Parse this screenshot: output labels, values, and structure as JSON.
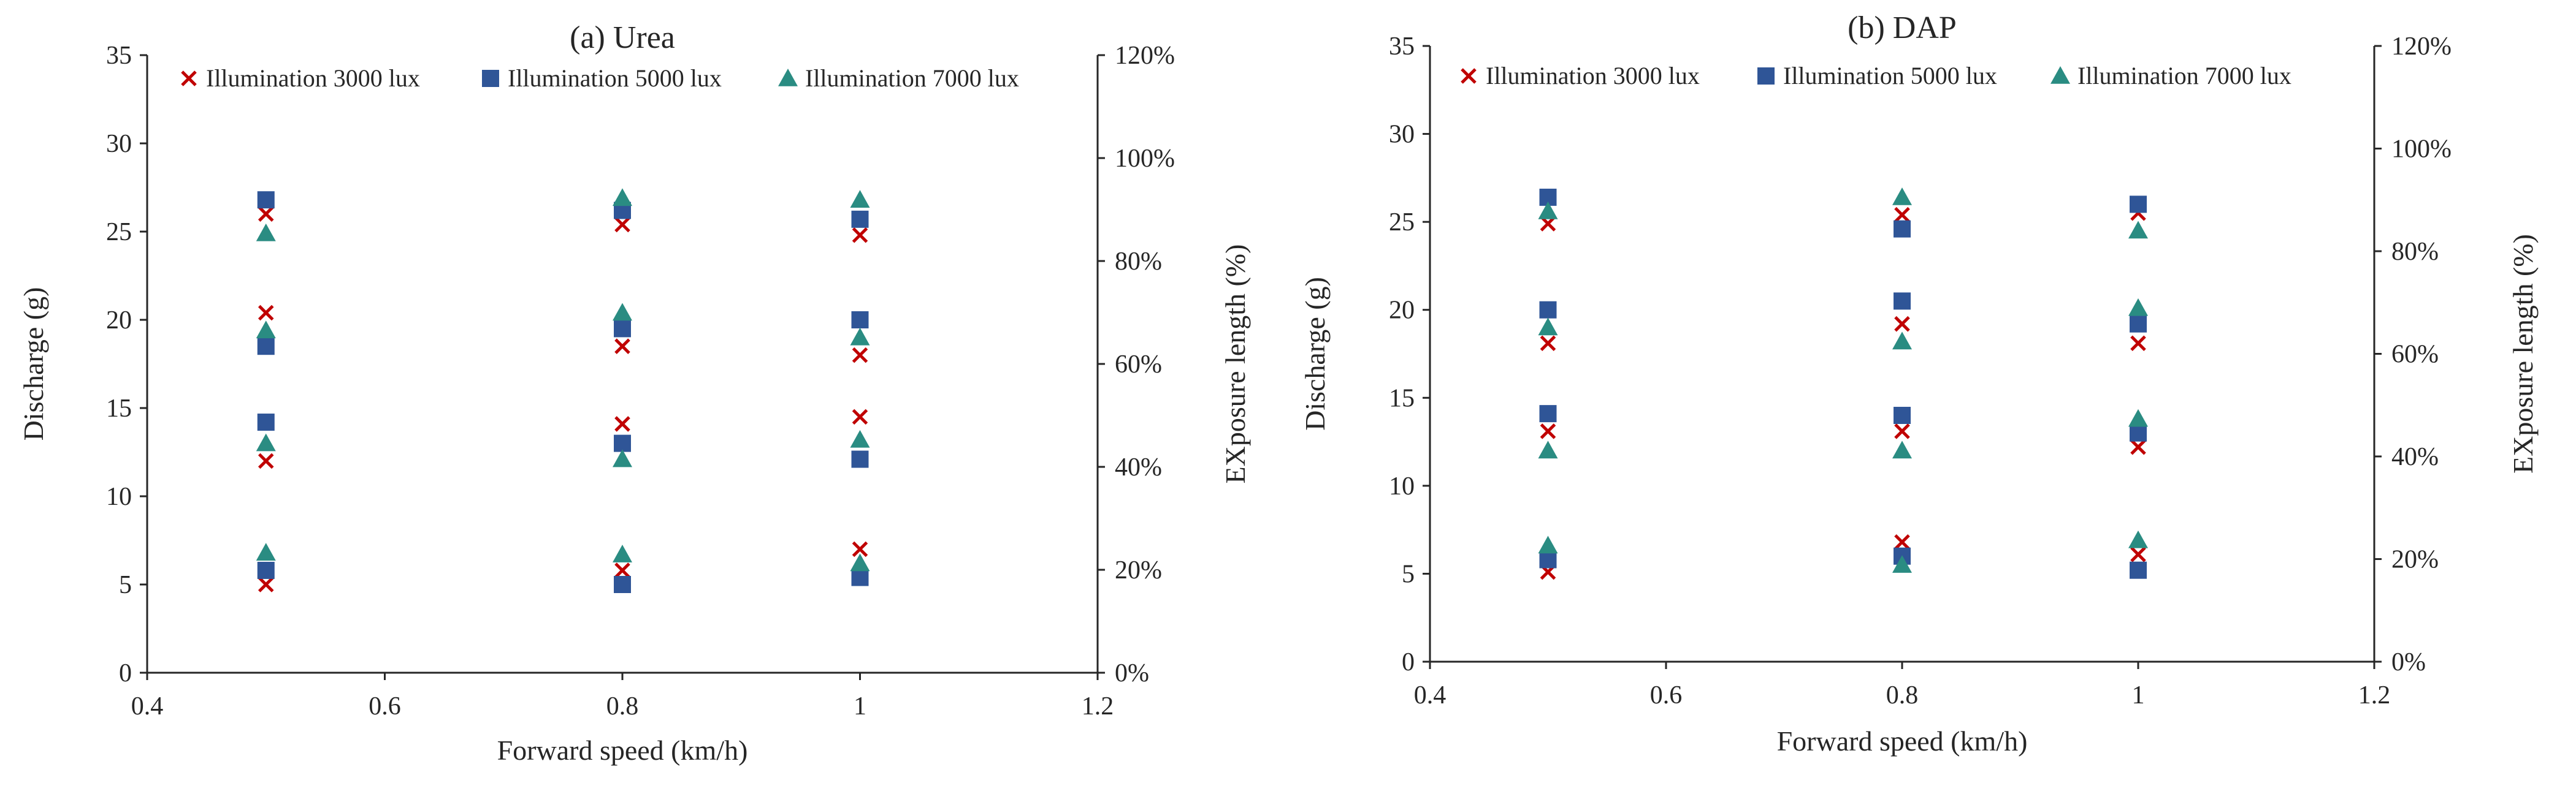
{
  "figure": {
    "colors": {
      "s3000": "#c00000",
      "s5000": "#2f5597",
      "s7000": "#2a8c82"
    }
  },
  "chart_data": [
    {
      "type": "scatter",
      "title": "(a) Urea",
      "xlabel": "Forward speed (km/h)",
      "ylabel": "Discharge (g)",
      "y2label": "EXposure length (%)",
      "xlim": [
        0.4,
        1.2
      ],
      "ylim": [
        0,
        35
      ],
      "y2lim": [
        0,
        1.2
      ],
      "x_ticks": [
        "0.4",
        "0.6",
        "0.8",
        "1",
        "1.2"
      ],
      "y_ticks": [
        "0",
        "5",
        "10",
        "15",
        "20",
        "25",
        "30",
        "35"
      ],
      "y2_ticks": [
        "0%",
        "20%",
        "40%",
        "60%",
        "80%",
        "100%",
        "120%"
      ],
      "legend_position": "top",
      "series": [
        {
          "key": "s3000",
          "name": "Illumination 3000 lux",
          "marker": "x",
          "points": [
            [
              0.5,
              5.0
            ],
            [
              0.5,
              12.0
            ],
            [
              0.5,
              20.4
            ],
            [
              0.5,
              26.0
            ],
            [
              0.8,
              5.8
            ],
            [
              0.8,
              14.1
            ],
            [
              0.8,
              18.5
            ],
            [
              0.8,
              25.4
            ],
            [
              1.0,
              7.0
            ],
            [
              1.0,
              14.5
            ],
            [
              1.0,
              18.0
            ],
            [
              1.0,
              24.8
            ]
          ]
        },
        {
          "key": "s5000",
          "name": "Illumination 5000 lux",
          "marker": "square",
          "points": [
            [
              0.5,
              5.8
            ],
            [
              0.5,
              14.2
            ],
            [
              0.5,
              18.5
            ],
            [
              0.5,
              26.8
            ],
            [
              0.8,
              5.0
            ],
            [
              0.8,
              13.0
            ],
            [
              0.8,
              19.5
            ],
            [
              0.8,
              26.2
            ],
            [
              1.0,
              5.4
            ],
            [
              1.0,
              12.1
            ],
            [
              1.0,
              20.0
            ],
            [
              1.0,
              25.7
            ]
          ]
        },
        {
          "key": "s7000",
          "name": "Illumination 7000 lux",
          "marker": "triangle",
          "points": [
            [
              0.5,
              6.8
            ],
            [
              0.5,
              13.0
            ],
            [
              0.5,
              19.4
            ],
            [
              0.5,
              24.9
            ],
            [
              0.8,
              6.7
            ],
            [
              0.8,
              12.1
            ],
            [
              0.8,
              20.4
            ],
            [
              0.8,
              26.9
            ],
            [
              1.0,
              6.2
            ],
            [
              1.0,
              13.2
            ],
            [
              1.0,
              19.0
            ],
            [
              1.0,
              26.8
            ]
          ]
        }
      ]
    },
    {
      "type": "scatter",
      "title": "(b) DAP",
      "xlabel": "Forward speed (km/h)",
      "ylabel": "Discharge (g)",
      "y2label": "EXposure length (%)",
      "xlim": [
        0.4,
        1.2
      ],
      "ylim": [
        0,
        35
      ],
      "y2lim": [
        0,
        1.2
      ],
      "x_ticks": [
        "0.4",
        "0.6",
        "0.8",
        "1",
        "1.2"
      ],
      "y_ticks": [
        "0",
        "5",
        "10",
        "15",
        "20",
        "25",
        "30",
        "35"
      ],
      "y2_ticks": [
        "0%",
        "20%",
        "40%",
        "60%",
        "80%",
        "100%",
        "120%"
      ],
      "legend_position": "top",
      "series": [
        {
          "key": "s3000",
          "name": "Illumination 3000 lux",
          "marker": "x",
          "points": [
            [
              0.5,
              5.1
            ],
            [
              0.5,
              13.1
            ],
            [
              0.5,
              18.1
            ],
            [
              0.5,
              24.9
            ],
            [
              0.8,
              6.8
            ],
            [
              0.8,
              13.1
            ],
            [
              0.8,
              19.2
            ],
            [
              0.8,
              25.4
            ],
            [
              1.0,
              6.1
            ],
            [
              1.0,
              12.2
            ],
            [
              1.0,
              18.1
            ],
            [
              1.0,
              25.5
            ]
          ]
        },
        {
          "key": "s5000",
          "name": "Illumination 5000 lux",
          "marker": "square",
          "points": [
            [
              0.5,
              5.8
            ],
            [
              0.5,
              14.1
            ],
            [
              0.5,
              20.0
            ],
            [
              0.5,
              26.4
            ],
            [
              0.8,
              6.0
            ],
            [
              0.8,
              14.0
            ],
            [
              0.8,
              20.5
            ],
            [
              0.8,
              24.6
            ],
            [
              1.0,
              5.2
            ],
            [
              1.0,
              13.0
            ],
            [
              1.0,
              19.2
            ],
            [
              1.0,
              26.0
            ]
          ]
        },
        {
          "key": "s7000",
          "name": "Illumination 7000 lux",
          "marker": "triangle",
          "points": [
            [
              0.5,
              6.6
            ],
            [
              0.5,
              12.0
            ],
            [
              0.5,
              19.0
            ],
            [
              0.5,
              25.6
            ],
            [
              0.8,
              5.5
            ],
            [
              0.8,
              12.0
            ],
            [
              0.8,
              18.2
            ],
            [
              0.8,
              26.4
            ],
            [
              1.0,
              6.9
            ],
            [
              1.0,
              13.8
            ],
            [
              1.0,
              20.1
            ],
            [
              1.0,
              24.5
            ]
          ]
        }
      ]
    }
  ]
}
